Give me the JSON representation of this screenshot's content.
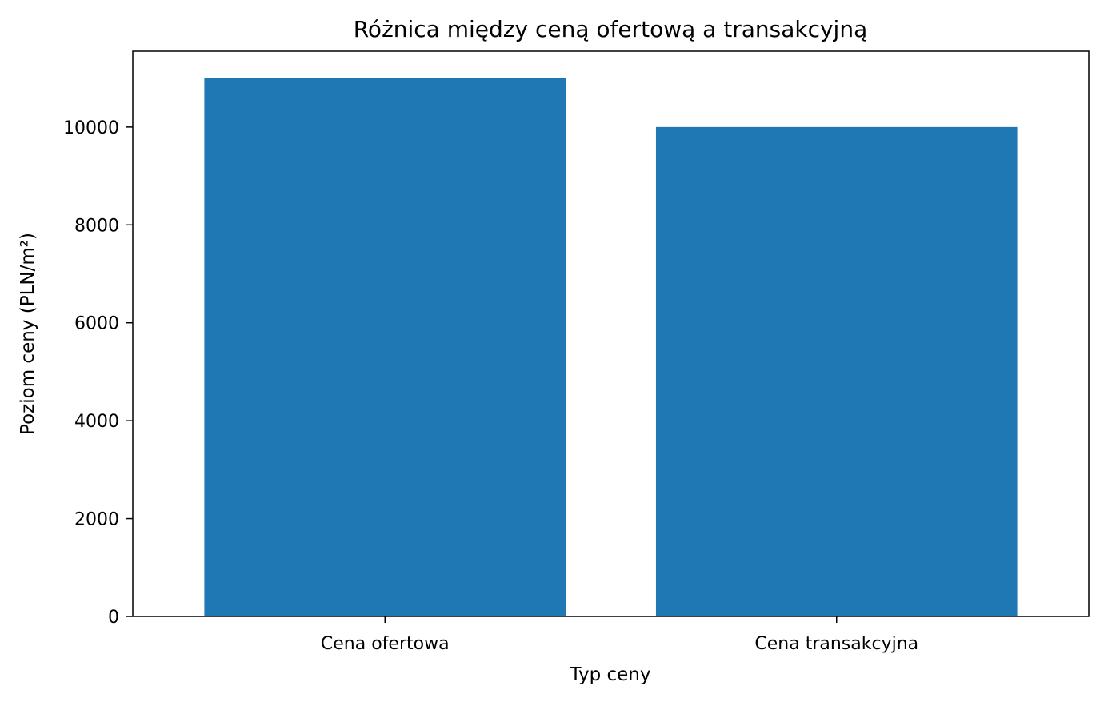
{
  "chart_data": {
    "type": "bar",
    "title": "Różnica między ceną ofertową a transakcyjną",
    "xlabel": "Typ ceny",
    "ylabel": "Poziom ceny (PLN/m²)",
    "categories": [
      "Cena ofertowa",
      "Cena transakcyjna"
    ],
    "values": [
      11000,
      10000
    ],
    "ylim": [
      0,
      11550
    ],
    "yticks": [
      0,
      2000,
      4000,
      6000,
      8000,
      10000
    ],
    "ytick_labels": [
      "0",
      "2000",
      "4000",
      "6000",
      "8000",
      "10000"
    ],
    "bar_color": "#1f77b4",
    "grid": false,
    "legend": "none"
  }
}
